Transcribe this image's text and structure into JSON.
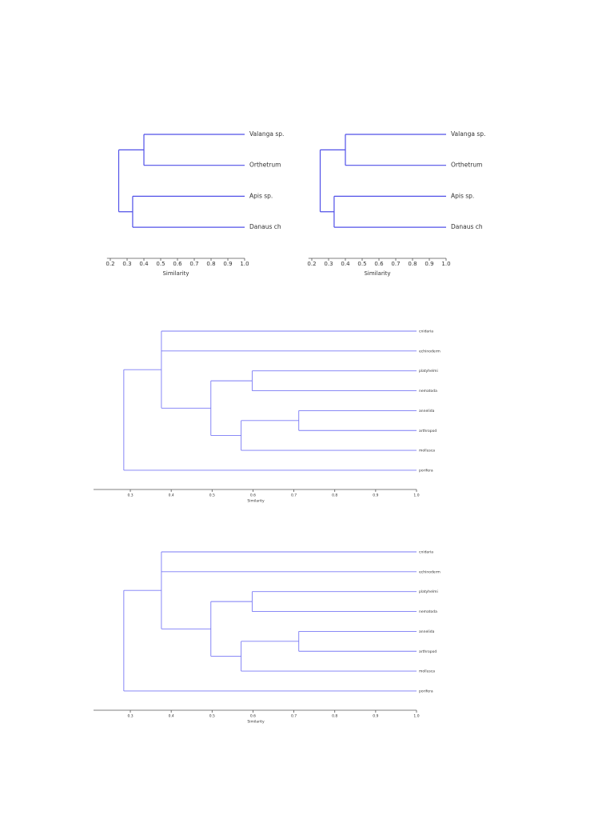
{
  "chart_data": [
    {
      "type": "dendrogram",
      "xlabel": "Similarity",
      "color": "#5050e8",
      "xlim": [
        0.18,
        1.0
      ],
      "xticks": [
        0.2,
        0.3,
        0.4,
        0.5,
        0.6,
        0.7,
        0.8,
        0.9,
        {
          "value": 1.0,
          "label": "1.0"
        }
      ],
      "tree": {
        "height": 0.25,
        "children": [
          {
            "height": 0.4,
            "children": [
              "Valanga sp.",
              "Orthetrum"
            ]
          },
          {
            "height": 0.333,
            "children": [
              "Apis sp.",
              "Danaus ch"
            ]
          }
        ]
      }
    },
    {
      "type": "dendrogram",
      "xlabel": "Similarity",
      "color": "#5050e8",
      "xlim": [
        0.18,
        1.0
      ],
      "xticks": [
        0.2,
        0.3,
        0.4,
        0.5,
        0.6,
        0.7,
        0.8,
        0.9,
        {
          "value": 1.0,
          "label": "1.0"
        }
      ],
      "tree": {
        "height": 0.25,
        "children": [
          {
            "height": 0.4,
            "children": [
              "Valanga sp.",
              "Orthetrum"
            ]
          },
          {
            "height": 0.333,
            "children": [
              "Apis sp.",
              "Danaus ch"
            ]
          }
        ]
      }
    },
    {
      "type": "dendrogram",
      "xlabel": "Similarity",
      "color": "#7a7af5",
      "xlim": [
        0.21,
        1.0
      ],
      "xticks": [
        0.3,
        0.4,
        0.5,
        0.6,
        0.7,
        0.8,
        0.9,
        {
          "value": 1.0,
          "label": "1.0"
        }
      ],
      "tree": {
        "height": 0.284,
        "children": [
          {
            "height": 0.376,
            "children": [
              "cnidaria",
              "echinoderm",
              {
                "height": 0.497,
                "children": [
                  {
                    "height": 0.598,
                    "children": [
                      "platyhelmi",
                      "nematoda"
                    ]
                  },
                  {
                    "height": 0.571,
                    "children": [
                      {
                        "height": 0.712,
                        "children": [
                          "annelida",
                          "arthropod"
                        ]
                      },
                      "mollusca"
                    ]
                  }
                ]
              }
            ]
          },
          "porifera"
        ]
      }
    },
    {
      "type": "dendrogram",
      "xlabel": "Similarity",
      "color": "#7a7af5",
      "xlim": [
        0.21,
        1.0
      ],
      "xticks": [
        0.3,
        0.4,
        0.5,
        0.6,
        0.7,
        0.8,
        0.9,
        {
          "value": 1.0,
          "label": "1.0"
        }
      ],
      "tree": {
        "height": 0.284,
        "children": [
          {
            "height": 0.376,
            "children": [
              "cnidaria",
              "echinoderm",
              {
                "height": 0.497,
                "children": [
                  {
                    "height": 0.598,
                    "children": [
                      "platyhelmi",
                      "nematoda"
                    ]
                  },
                  {
                    "height": 0.571,
                    "children": [
                      {
                        "height": 0.712,
                        "children": [
                          "annelida",
                          "arthropod"
                        ]
                      },
                      "mollusca"
                    ]
                  }
                ]
              }
            ]
          },
          "porifera"
        ]
      }
    }
  ]
}
